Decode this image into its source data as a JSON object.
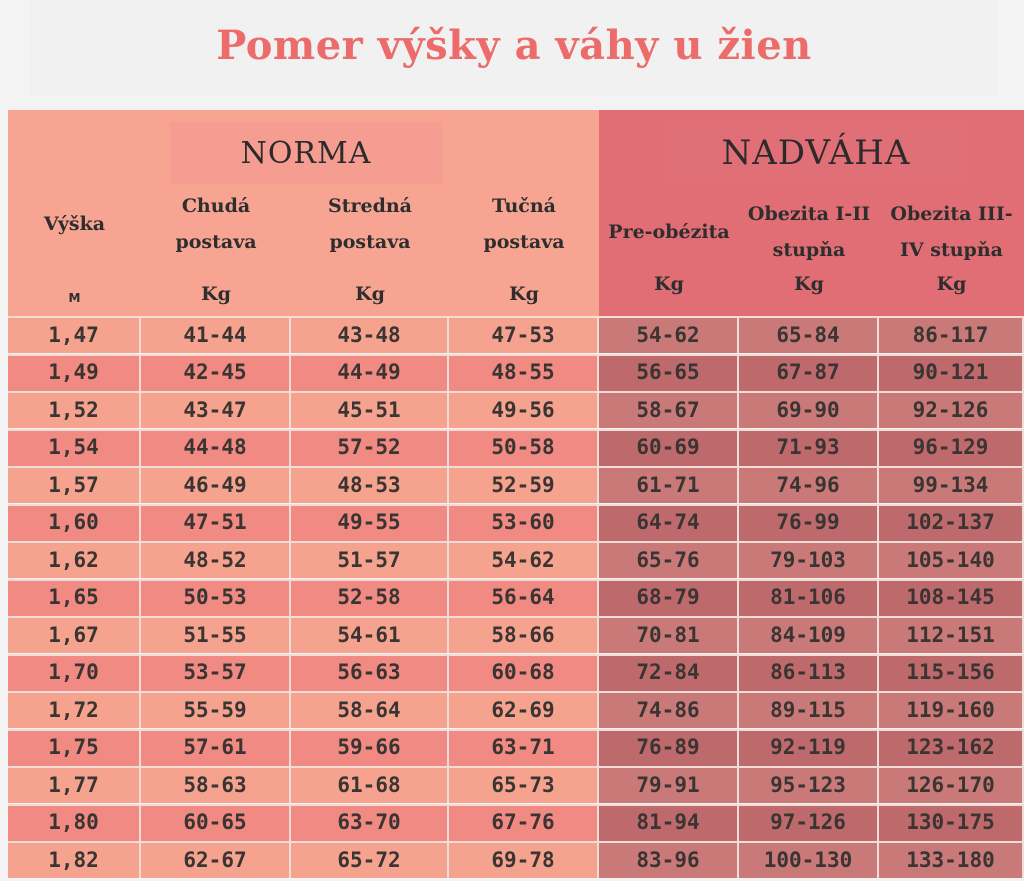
{
  "title": "Pomer výšky a váhy u žien",
  "groups": {
    "norma": "NORMA",
    "nadvaha": "NADVÁHA"
  },
  "columns": [
    {
      "label_lines": [
        "Výška"
      ],
      "unit": "M"
    },
    {
      "label_lines": [
        "Chudá",
        "postava"
      ],
      "unit": "Kg"
    },
    {
      "label_lines": [
        "Stredná",
        "postava"
      ],
      "unit": "Kg"
    },
    {
      "label_lines": [
        "Tučná",
        "postava"
      ],
      "unit": "Kg"
    },
    {
      "label_lines": [
        "Pre-obézita"
      ],
      "unit": "Kg"
    },
    {
      "label_lines": [
        "Obezita I-II",
        "stupňa"
      ],
      "unit": "Kg"
    },
    {
      "label_lines": [
        "Obezita III-",
        "IV stupňa"
      ],
      "unit": "Kg"
    }
  ],
  "rows": [
    [
      "1,47",
      "41-44",
      "43-48",
      "47-53",
      "54-62",
      "65-84",
      "86-117"
    ],
    [
      "1,49",
      "42-45",
      "44-49",
      "48-55",
      "56-65",
      "67-87",
      "90-121"
    ],
    [
      "1,52",
      "43-47",
      "45-51",
      "49-56",
      "58-67",
      "69-90",
      "92-126"
    ],
    [
      "1,54",
      "44-48",
      "57-52",
      "50-58",
      "60-69",
      "71-93",
      "96-129"
    ],
    [
      "1,57",
      "46-49",
      "48-53",
      "52-59",
      "61-71",
      "74-96",
      "99-134"
    ],
    [
      "1,60",
      "47-51",
      "49-55",
      "53-60",
      "64-74",
      "76-99",
      "102-137"
    ],
    [
      "1,62",
      "48-52",
      "51-57",
      "54-62",
      "65-76",
      "79-103",
      "105-140"
    ],
    [
      "1,65",
      "50-53",
      "52-58",
      "56-64",
      "68-79",
      "81-106",
      "108-145"
    ],
    [
      "1,67",
      "51-55",
      "54-61",
      "58-66",
      "70-81",
      "84-109",
      "112-151"
    ],
    [
      "1,70",
      "53-57",
      "56-63",
      "60-68",
      "72-84",
      "86-113",
      "115-156"
    ],
    [
      "1,72",
      "55-59",
      "58-64",
      "62-69",
      "74-86",
      "89-115",
      "119-160"
    ],
    [
      "1,75",
      "57-61",
      "59-66",
      "63-71",
      "76-89",
      "92-119",
      "123-162"
    ],
    [
      "1,77",
      "58-63",
      "61-68",
      "65-73",
      "79-91",
      "95-123",
      "126-170"
    ],
    [
      "1,80",
      "60-65",
      "63-70",
      "67-76",
      "81-94",
      "97-126",
      "130-175"
    ],
    [
      "1,82",
      "62-67",
      "65-72",
      "69-78",
      "83-96",
      "100-130",
      "133-180"
    ]
  ],
  "colors": {
    "title": "#ec6b6b",
    "norma_row_a": "#f5a38e",
    "norma_row_b": "#f08a82",
    "nadvaha_row_a": "#c97a78",
    "nadvaha_row_b": "#be6a6c",
    "text": "#3a3533"
  }
}
